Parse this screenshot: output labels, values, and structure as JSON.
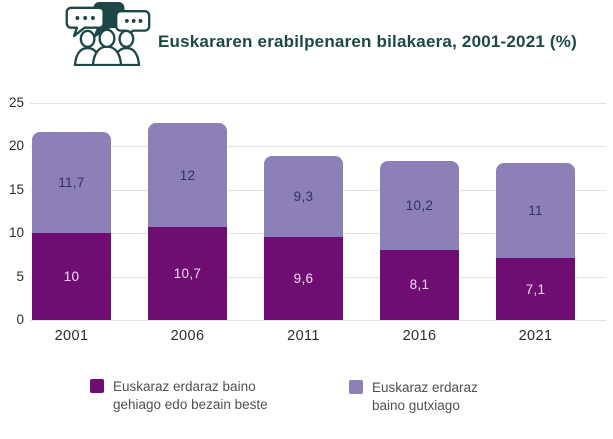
{
  "header": {
    "title": "Euskararen erabilpenaren bilakaera, 2001-2021 (%)",
    "icon": "people-chat-icon"
  },
  "chart_data": {
    "type": "bar",
    "stacked": true,
    "title": "Euskararen erabilpenaren bilakaera, 2001-2021 (%)",
    "categories": [
      "2001",
      "2006",
      "2011",
      "2016",
      "2021"
    ],
    "series": [
      {
        "name": "Euskaraz erdaraz baino gehiago edo bezain beste",
        "color": "#6f0d73",
        "label_color": "#f2ddf1",
        "values": [
          10,
          10.7,
          9.6,
          8.1,
          7.1
        ],
        "labels": [
          "10",
          "10,7",
          "9,6",
          "8,1",
          "7,1"
        ]
      },
      {
        "name": "Euskaraz erdaraz baino gutxiago",
        "color": "#8d80b9",
        "label_color": "#2e3460",
        "values": [
          11.7,
          12,
          9.3,
          10.2,
          11
        ],
        "labels": [
          "11,7",
          "12",
          "9,3",
          "10,2",
          "11"
        ]
      }
    ],
    "totals": [
      21.7,
      22.7,
      18.9,
      18.3,
      18.1
    ],
    "xlabel": "",
    "ylabel": "",
    "ylim": [
      0,
      25
    ],
    "yticks": [
      0,
      5,
      10,
      15,
      20,
      25
    ],
    "grid": true,
    "legend_position": "bottom",
    "number_format": "decimal-comma"
  },
  "legend": {
    "items": [
      {
        "label": "Euskaraz erdaraz baino gehiago edo bezain beste",
        "color": "#6f0d73"
      },
      {
        "label": "Euskaraz erdaraz baino gutxiago",
        "color": "#8d80b9"
      }
    ]
  },
  "colors": {
    "title": "#1c4848",
    "icon": "#1d4747",
    "axis_text": "#2d2d2d",
    "legend_text": "#505050",
    "gridline": "#e2e2e2",
    "background": "#ffffff"
  }
}
